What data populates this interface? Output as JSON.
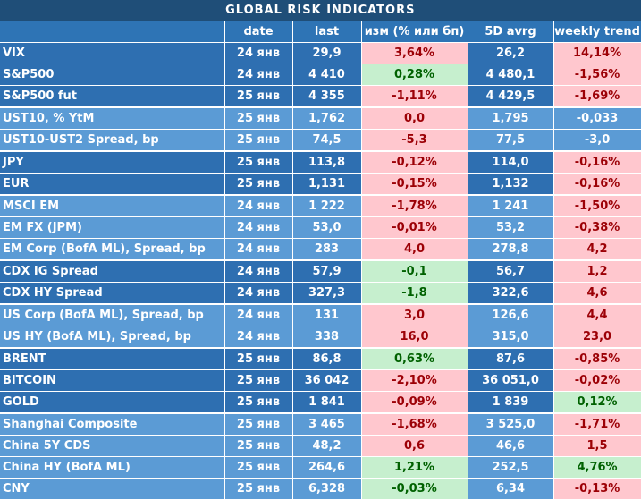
{
  "title": "GLOBAL   RISK   INDICATORS",
  "headers": {
    "name": "",
    "date": "date",
    "last": "last",
    "change": "изм (% или бп)",
    "avg5d": "5D avrg",
    "trend": "weekly trend"
  },
  "colors": {
    "title_bg": "#1f4e78",
    "dark_band": "#2e6fb1",
    "light_band": "#5b9bd5",
    "negative_fill": "#ffc7ce",
    "negative_text": "#9c0006",
    "positive_fill": "#c6efce",
    "positive_text": "#006100"
  },
  "chart_data": {
    "type": "table",
    "title": "GLOBAL   RISK   INDICATORS",
    "columns": [
      "",
      "date",
      "last",
      "изм (% или бп)",
      "5D avrg",
      "weekly trend"
    ],
    "rows": [
      {
        "name": "VIX",
        "date": "24 янв",
        "last": "29,9",
        "change": "3,64%",
        "avg": "26,2",
        "trend": "14,14%",
        "change_fill": "neg",
        "trend_fill": "neg",
        "group": "dark"
      },
      {
        "name": "S&P500",
        "date": "24 янв",
        "last": "4 410",
        "change": "0,28%",
        "avg": "4 480,1",
        "trend": "-1,56%",
        "change_fill": "pos",
        "trend_fill": "neg",
        "group": "dark"
      },
      {
        "name": "S&P500 fut",
        "date": "25 янв",
        "last": "4 355",
        "change": "-1,11%",
        "avg": "4 429,5",
        "trend": "-1,69%",
        "change_fill": "neg",
        "trend_fill": "neg",
        "group": "dark"
      },
      {
        "name": "UST10, % YtM",
        "date": "25 янв",
        "last": "1,762",
        "change": "0,0",
        "avg": "1,795",
        "trend": "-0,033",
        "change_fill": "neg",
        "trend_fill": "none",
        "group": "light"
      },
      {
        "name": "UST10-UST2 Spread, bp",
        "date": "25 янв",
        "last": "74,5",
        "change": "-5,3",
        "avg": "77,5",
        "trend": "-3,0",
        "change_fill": "neg",
        "trend_fill": "none",
        "group": "light"
      },
      {
        "name": "JPY",
        "date": "25 янв",
        "last": "113,8",
        "change": "-0,12%",
        "avg": "114,0",
        "trend": "-0,16%",
        "change_fill": "neg",
        "trend_fill": "neg",
        "group": "dark"
      },
      {
        "name": "EUR",
        "date": "25 янв",
        "last": "1,131",
        "change": "-0,15%",
        "avg": "1,132",
        "trend": "-0,16%",
        "change_fill": "neg",
        "trend_fill": "neg",
        "group": "dark"
      },
      {
        "name": "MSCI EM",
        "date": "24 янв",
        "last": "1 222",
        "change": "-1,78%",
        "avg": "1 241",
        "trend": "-1,50%",
        "change_fill": "neg",
        "trend_fill": "neg",
        "group": "light"
      },
      {
        "name": "EM FX (JPM)",
        "date": "24 янв",
        "last": "53,0",
        "change": "-0,01%",
        "avg": "53,2",
        "trend": "-0,38%",
        "change_fill": "neg",
        "trend_fill": "neg",
        "group": "light"
      },
      {
        "name": "EM Corp (BofA ML), Spread, bp",
        "date": "24 янв",
        "last": "283",
        "change": "4,0",
        "avg": "278,8",
        "trend": "4,2",
        "change_fill": "neg",
        "trend_fill": "neg",
        "group": "light"
      },
      {
        "name": "CDX IG Spread",
        "date": "24 янв",
        "last": "57,9",
        "change": "-0,1",
        "avg": "56,7",
        "trend": "1,2",
        "change_fill": "pos",
        "trend_fill": "neg",
        "group": "dark"
      },
      {
        "name": "CDX HY Spread",
        "date": "24 янв",
        "last": "327,3",
        "change": "-1,8",
        "avg": "322,6",
        "trend": "4,6",
        "change_fill": "pos",
        "trend_fill": "neg",
        "group": "dark"
      },
      {
        "name": "US Corp (BofA ML), Spread, bp",
        "date": "24 янв",
        "last": "131",
        "change": "3,0",
        "avg": "126,6",
        "trend": "4,4",
        "change_fill": "neg",
        "trend_fill": "neg",
        "group": "light"
      },
      {
        "name": "US HY (BofA ML), Spread, bp",
        "date": "24 янв",
        "last": "338",
        "change": "16,0",
        "avg": "315,0",
        "trend": "23,0",
        "change_fill": "neg",
        "trend_fill": "neg",
        "group": "light"
      },
      {
        "name": "BRENT",
        "date": "25 янв",
        "last": "86,8",
        "change": "0,63%",
        "avg": "87,6",
        "trend": "-0,85%",
        "change_fill": "pos",
        "trend_fill": "neg",
        "group": "dark"
      },
      {
        "name": "BITCOIN",
        "date": "25 янв",
        "last": "36 042",
        "change": "-2,10%",
        "avg": "36 051,0",
        "trend": "-0,02%",
        "change_fill": "neg",
        "trend_fill": "neg",
        "group": "dark"
      },
      {
        "name": "GOLD",
        "date": "25 янв",
        "last": "1 841",
        "change": "-0,09%",
        "avg": "1 839",
        "trend": "0,12%",
        "change_fill": "neg",
        "trend_fill": "pos",
        "group": "dark"
      },
      {
        "name": "Shanghai Composite",
        "date": "25 янв",
        "last": "3 465",
        "change": "-1,68%",
        "avg": "3 525,0",
        "trend": "-1,71%",
        "change_fill": "neg",
        "trend_fill": "neg",
        "group": "light"
      },
      {
        "name": "China 5Y CDS",
        "date": "25 янв",
        "last": "48,2",
        "change": "0,6",
        "avg": "46,6",
        "trend": "1,5",
        "change_fill": "neg",
        "trend_fill": "neg",
        "group": "light"
      },
      {
        "name": "China HY (BofA ML)",
        "date": "25 янв",
        "last": "264,6",
        "change": "1,21%",
        "avg": "252,5",
        "trend": "4,76%",
        "change_fill": "pos",
        "trend_fill": "pos",
        "group": "light"
      },
      {
        "name": "CNY",
        "date": "25 янв",
        "last": "6,328",
        "change": "-0,03%",
        "avg": "6,34",
        "trend": "-0,13%",
        "change_fill": "pos",
        "trend_fill": "neg",
        "group": "light"
      }
    ]
  }
}
